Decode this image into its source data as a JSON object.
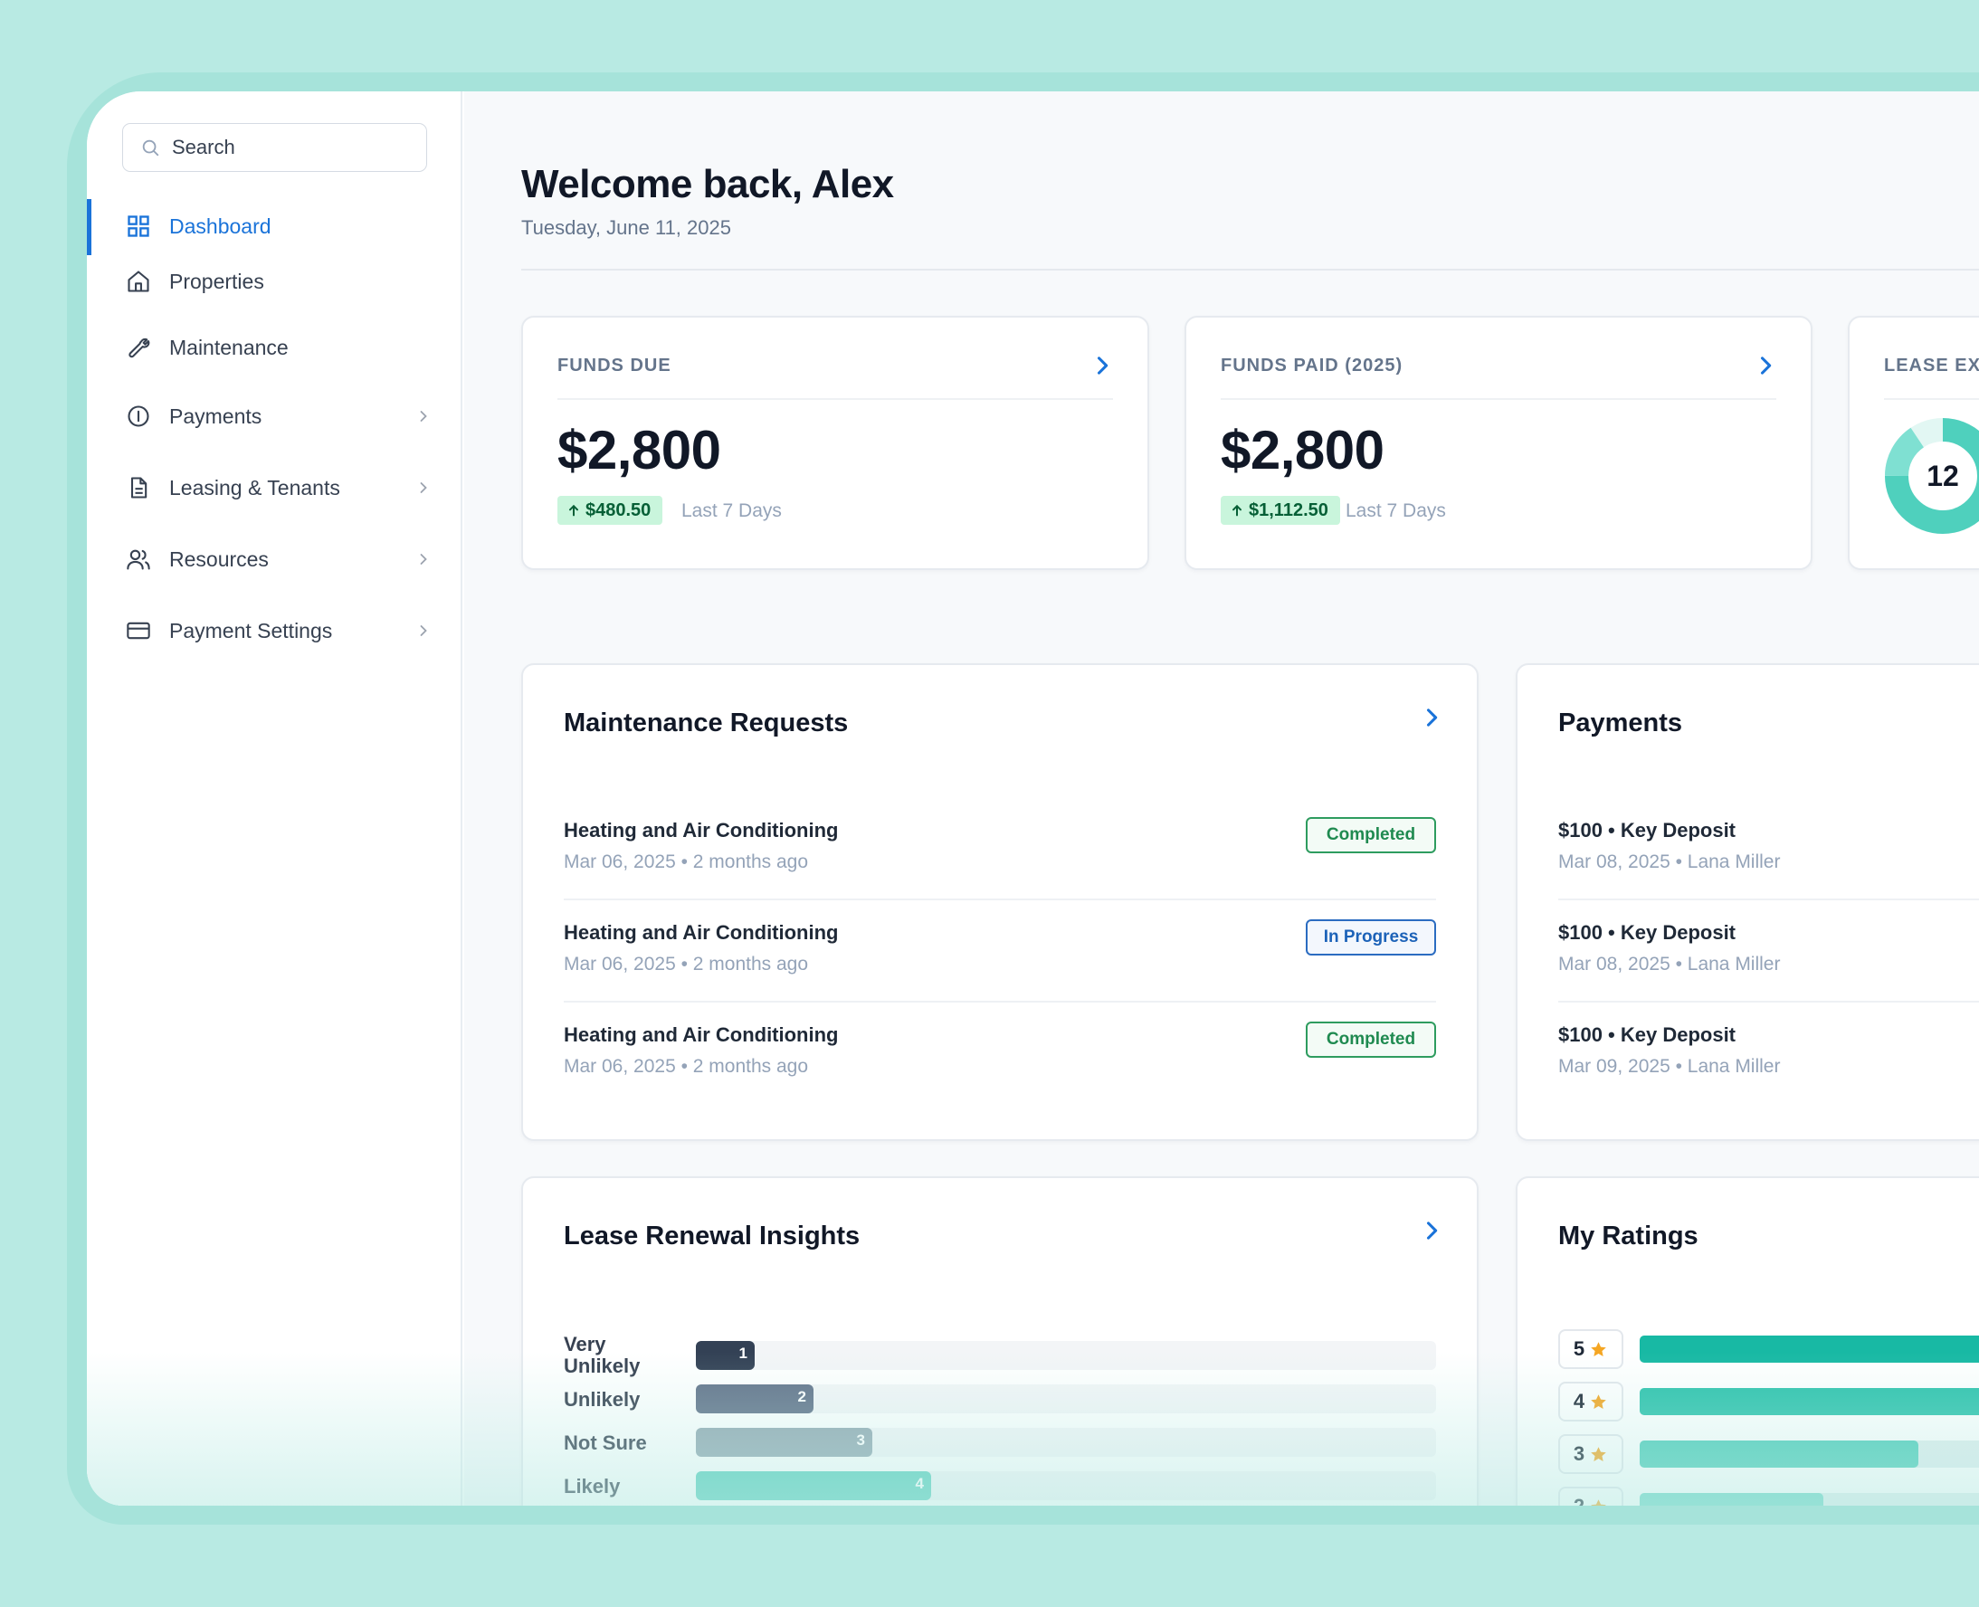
{
  "sidebar": {
    "search_placeholder": "Search",
    "items": [
      {
        "label": "Dashboard",
        "icon": "grid-icon",
        "active": true
      },
      {
        "label": "Properties",
        "icon": "home-icon"
      },
      {
        "label": "Maintenance",
        "icon": "wrench-icon"
      },
      {
        "label": "Payments",
        "icon": "info-icon",
        "has_chevron": true
      },
      {
        "label": "Leasing & Tenants",
        "icon": "document-icon",
        "has_chevron": true
      },
      {
        "label": "Resources",
        "icon": "users-icon",
        "has_chevron": true
      },
      {
        "label": "Payment Settings",
        "icon": "credit-card-icon",
        "has_chevron": true
      }
    ]
  },
  "header": {
    "title": "Welcome back, Alex",
    "date": "Tuesday, June 11, 2025"
  },
  "stats": {
    "funds_due": {
      "title": "FUNDS DUE",
      "value": "$2,800",
      "delta": "$480.50",
      "period": "Last 7 Days"
    },
    "funds_paid": {
      "title": "FUNDS PAID (2025)",
      "value": "$2,800",
      "delta": "$1,112.50",
      "period": "Last 7 Days"
    },
    "lease_expiring": {
      "title": "LEASE EXI",
      "value": "12"
    }
  },
  "maintenance": {
    "title": "Maintenance Requests",
    "rows": [
      {
        "title": "Heating and Air Conditioning",
        "date": "Mar 06, 2025",
        "ago": "2 months ago",
        "status": "Completed"
      },
      {
        "title": "Heating and Air Conditioning",
        "date": "Mar 06, 2025",
        "ago": "2 months ago",
        "status": "In Progress"
      },
      {
        "title": "Heating and Air Conditioning",
        "date": "Mar 06, 2025",
        "ago": "2 months ago",
        "status": "Completed"
      }
    ]
  },
  "payments": {
    "title": "Payments",
    "rows": [
      {
        "title": "$100 • Key Deposit",
        "sub": "Mar 08, 2025 • Lana Miller"
      },
      {
        "title": "$100 • Key Deposit",
        "sub": "Mar 08, 2025 • Lana Miller"
      },
      {
        "title": "$100 • Key Deposit",
        "sub": "Mar 09, 2025 • Lana Miller"
      }
    ]
  },
  "insights": {
    "title": "Lease Renewal Insights",
    "rows": [
      {
        "label": "Very Unlikely",
        "value": 1,
        "color": "#334155"
      },
      {
        "label": "Unlikely",
        "value": 2,
        "color": "#64748b"
      },
      {
        "label": "Not Sure",
        "value": 3,
        "color": "#94a9b3"
      },
      {
        "label": "Likely",
        "value": 4,
        "color": "#5ccfbe"
      }
    ]
  },
  "ratings": {
    "title": "My Ratings",
    "rows": [
      {
        "stars": "5",
        "fraction": 1.0,
        "color": "#18b9a4"
      },
      {
        "stars": "4",
        "fraction": 0.96,
        "color": "#2ec3ad"
      },
      {
        "stars": "3",
        "fraction": 0.44,
        "color": "#4fcdba"
      },
      {
        "stars": "2",
        "fraction": 0.29,
        "color": "#6fd6c6"
      }
    ]
  },
  "colors": {
    "accent": "#1a73d9",
    "background": "#b8eae3",
    "completed": "#2e9c5f",
    "in_progress": "#2b6cc1",
    "star": "#f5a623"
  }
}
